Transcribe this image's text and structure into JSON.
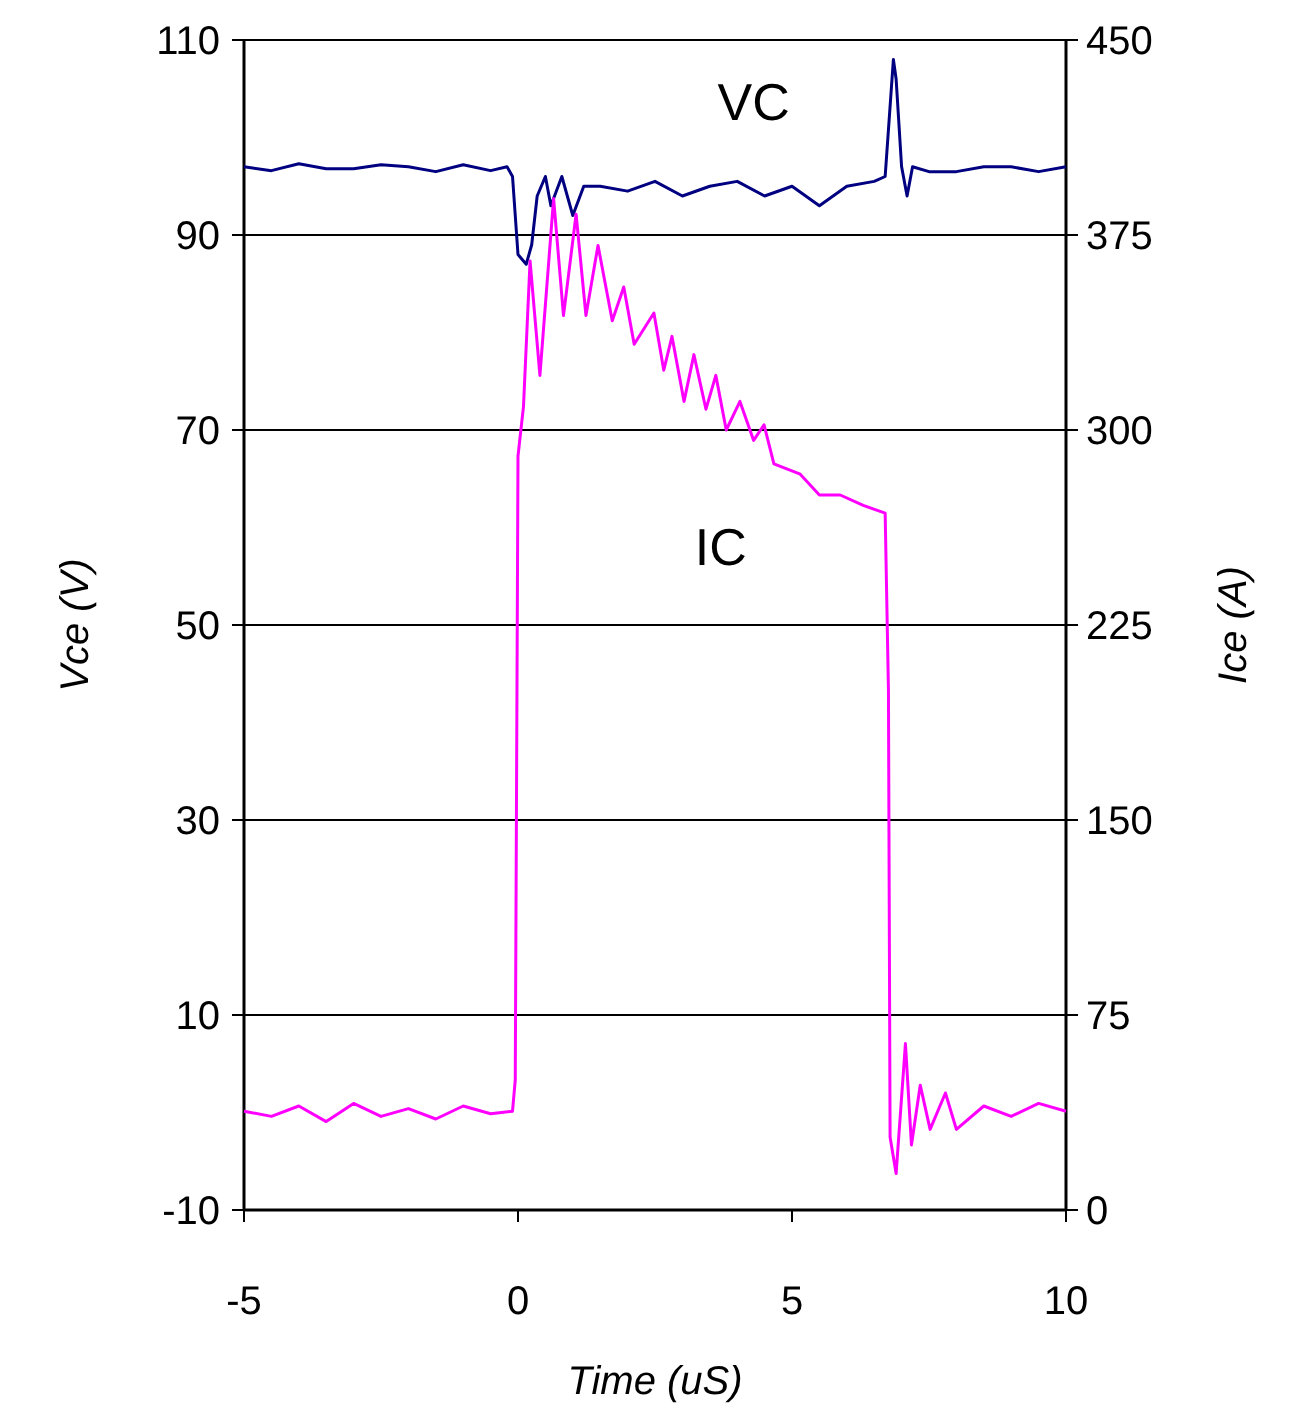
{
  "chart_data": {
    "type": "line",
    "xlabel": "Time (uS)",
    "ylabel": "Vce (V)",
    "y2label": "Ice (A)",
    "xlim": [
      -5,
      10
    ],
    "xticks": [
      -5,
      0,
      5,
      10
    ],
    "ylim": [
      -10,
      110
    ],
    "yticks": [
      -10,
      10,
      30,
      50,
      70,
      90,
      110
    ],
    "y2lim": [
      0,
      450
    ],
    "y2ticks": [
      0,
      75,
      150,
      225,
      300,
      375,
      450
    ],
    "grid": "y",
    "line_style": "solid",
    "series": [
      {
        "name": "VC",
        "color": "#000080",
        "x": [
          -5,
          -4.5,
          -4,
          -3.5,
          -3,
          -2.5,
          -2,
          -1.5,
          -1,
          -0.5,
          -0.2,
          -0.1,
          0,
          0.15,
          0.25,
          0.35,
          0.5,
          0.6,
          0.8,
          1.0,
          1.2,
          1.5,
          2,
          2.5,
          3,
          3.5,
          4,
          4.5,
          5,
          5.5,
          6,
          6.5,
          6.7,
          6.8,
          6.85,
          6.9,
          7.0,
          7.1,
          7.2,
          7.5,
          8,
          8.5,
          9,
          9.5,
          10
        ],
        "values": [
          97,
          96.6,
          97.3,
          96.8,
          96.8,
          97.2,
          97,
          96.5,
          97.2,
          96.6,
          97,
          96,
          88,
          87,
          89,
          94,
          96,
          93,
          96,
          92,
          95,
          95,
          94.5,
          95.5,
          94,
          95,
          95.5,
          94,
          95,
          93,
          95,
          95.5,
          96,
          104,
          108,
          106,
          97,
          94,
          97,
          96.5,
          96.5,
          97,
          97,
          96.5,
          97
        ]
      },
      {
        "name": "IC",
        "color": "#ff00ff",
        "axis": "y2",
        "x": [
          -5,
          -4.5,
          -4,
          -3.5,
          -3,
          -2.5,
          -2,
          -1.5,
          -1,
          -0.5,
          -0.1,
          -0.05,
          0,
          0.1,
          0.22,
          0.4,
          0.65,
          0.83,
          1.06,
          1.24,
          1.46,
          1.72,
          1.93,
          2.12,
          2.48,
          2.66,
          2.81,
          3.03,
          3.21,
          3.43,
          3.61,
          3.8,
          4.05,
          4.3,
          4.49,
          4.67,
          5.15,
          5.5,
          5.88,
          6.3,
          6.7,
          6.76,
          6.79,
          6.9,
          7.07,
          7.18,
          7.34,
          7.52,
          7.8,
          8.0,
          8.5,
          9,
          9.5,
          10
        ],
        "values": [
          38,
          36,
          40,
          34,
          41,
          36,
          39,
          35,
          40,
          37,
          38,
          50,
          290,
          309,
          365,
          321,
          389,
          344,
          383,
          344,
          371,
          342,
          355,
          333,
          345,
          323,
          336,
          311,
          329,
          308,
          321,
          300,
          311,
          296,
          302,
          287,
          283,
          275,
          275,
          271,
          268,
          200,
          28,
          14,
          64,
          25,
          48,
          31,
          45,
          31,
          40,
          36,
          41,
          38
        ]
      }
    ]
  }
}
